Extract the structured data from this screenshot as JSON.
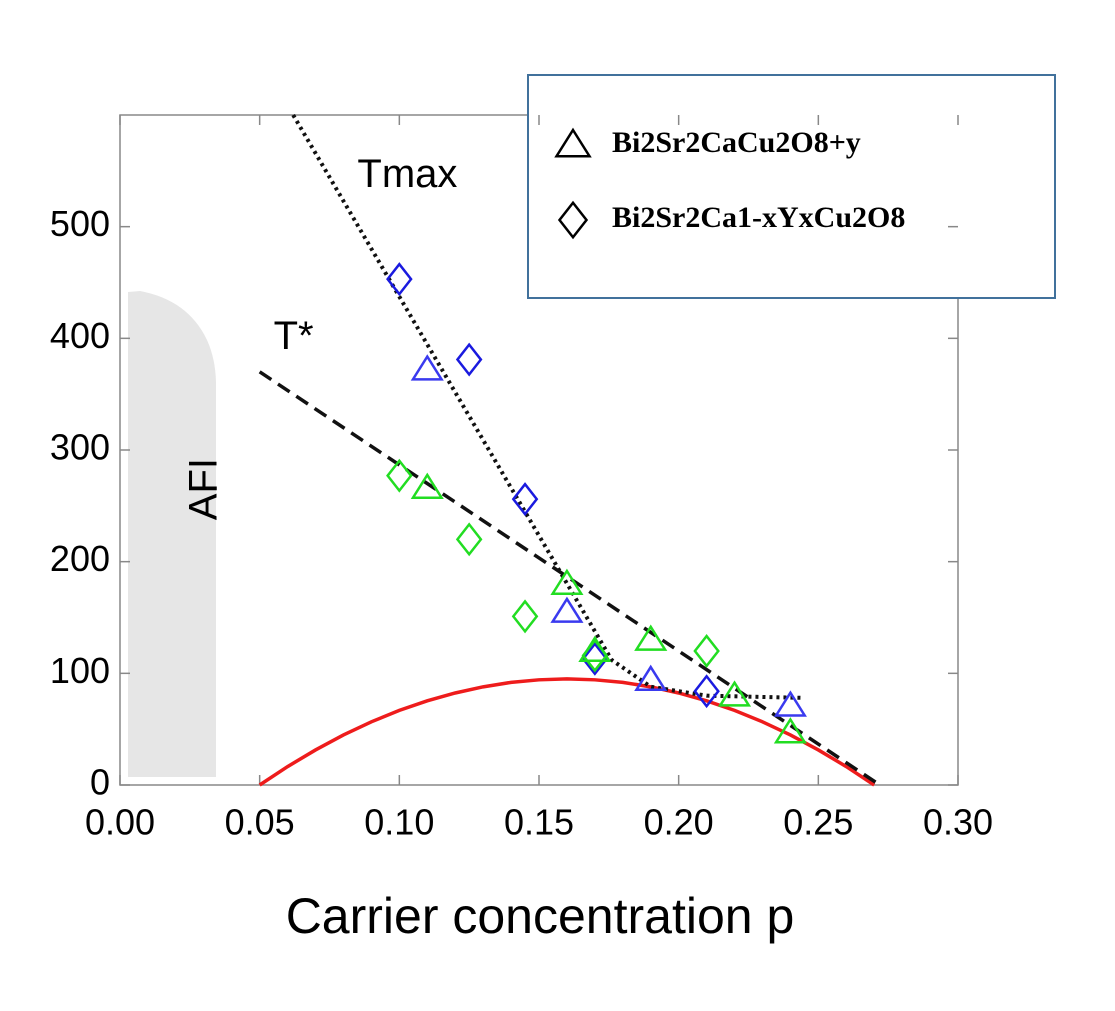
{
  "chart_data": {
    "type": "scatter",
    "x_label": "Carrier concentration p",
    "xlim": [
      0,
      0.3
    ],
    "ylim": [
      0,
      600
    ],
    "xticks": [
      {
        "value": 0,
        "label": "0.00"
      },
      {
        "value": 0.05,
        "label": "0.05"
      },
      {
        "value": 0.1,
        "label": "0.10"
      },
      {
        "value": 0.15,
        "label": "0.15"
      },
      {
        "value": 0.2,
        "label": "0.20"
      },
      {
        "value": 0.25,
        "label": "0.25"
      },
      {
        "value": 0.3,
        "label": "0.30"
      }
    ],
    "yticks": [
      0,
      100,
      200,
      300,
      400,
      500
    ],
    "legend": [
      {
        "name": "Bi2Sr2CaCu2O8+y",
        "marker": "triangle"
      },
      {
        "name": "Bi2Sr2Ca1-xYxCu2O8",
        "marker": "diamond"
      }
    ],
    "series": [
      {
        "marker": "diamond",
        "color": "#1a1adf",
        "x": [
          0.1,
          0.125,
          0.145,
          0.17,
          0.21
        ],
        "values": [
          453,
          381,
          256,
          113,
          84
        ]
      },
      {
        "marker": "triangle",
        "color": "#3a3aef",
        "x": [
          0.11,
          0.16,
          0.19,
          0.24
        ],
        "values": [
          372,
          155,
          94,
          71
        ]
      },
      {
        "marker": "triangle",
        "color": "#22dd22",
        "x": [
          0.11,
          0.16,
          0.17,
          0.19,
          0.22,
          0.24
        ],
        "values": [
          266,
          180,
          120,
          130,
          80,
          47
        ]
      },
      {
        "marker": "diamond",
        "color": "#22dd22",
        "x": [
          0.1,
          0.125,
          0.145,
          0.17,
          0.21
        ],
        "values": [
          277,
          220,
          151,
          116,
          120
        ]
      }
    ],
    "lines": [
      {
        "style": "solid",
        "color": "#ee1c1c",
        "x": [
          0.05,
          0.06,
          0.07,
          0.08,
          0.09,
          0.1,
          0.11,
          0.12,
          0.13,
          0.14,
          0.15,
          0.16,
          0.17,
          0.18,
          0.19,
          0.2,
          0.21,
          0.22,
          0.23,
          0.24,
          0.25,
          0.26,
          0.27
        ],
        "values": [
          0,
          16.5,
          31.4,
          44.8,
          56.6,
          66.8,
          75.4,
          82.4,
          87.9,
          91.9,
          94.2,
          95,
          94.2,
          91.9,
          87.9,
          82.4,
          75.4,
          66.8,
          56.6,
          44.8,
          31.4,
          16.5,
          0
        ]
      },
      {
        "style": "dashed",
        "color": "#111111",
        "x": [
          0.05,
          0.272
        ],
        "values": [
          370,
          0
        ]
      },
      {
        "style": "dotted",
        "color": "#111111",
        "x": [
          0.062,
          0.176,
          0.183,
          0.19,
          0.21,
          0.245
        ],
        "values": [
          600,
          112,
          100,
          88,
          80,
          78
        ]
      }
    ],
    "annotations": [
      {
        "text": "Tmax",
        "x": 0.085,
        "y": 545
      },
      {
        "text": "T*",
        "x": 0.055,
        "y": 400
      },
      {
        "text": "AFI",
        "x": 0.01,
        "y": 265
      }
    ]
  }
}
